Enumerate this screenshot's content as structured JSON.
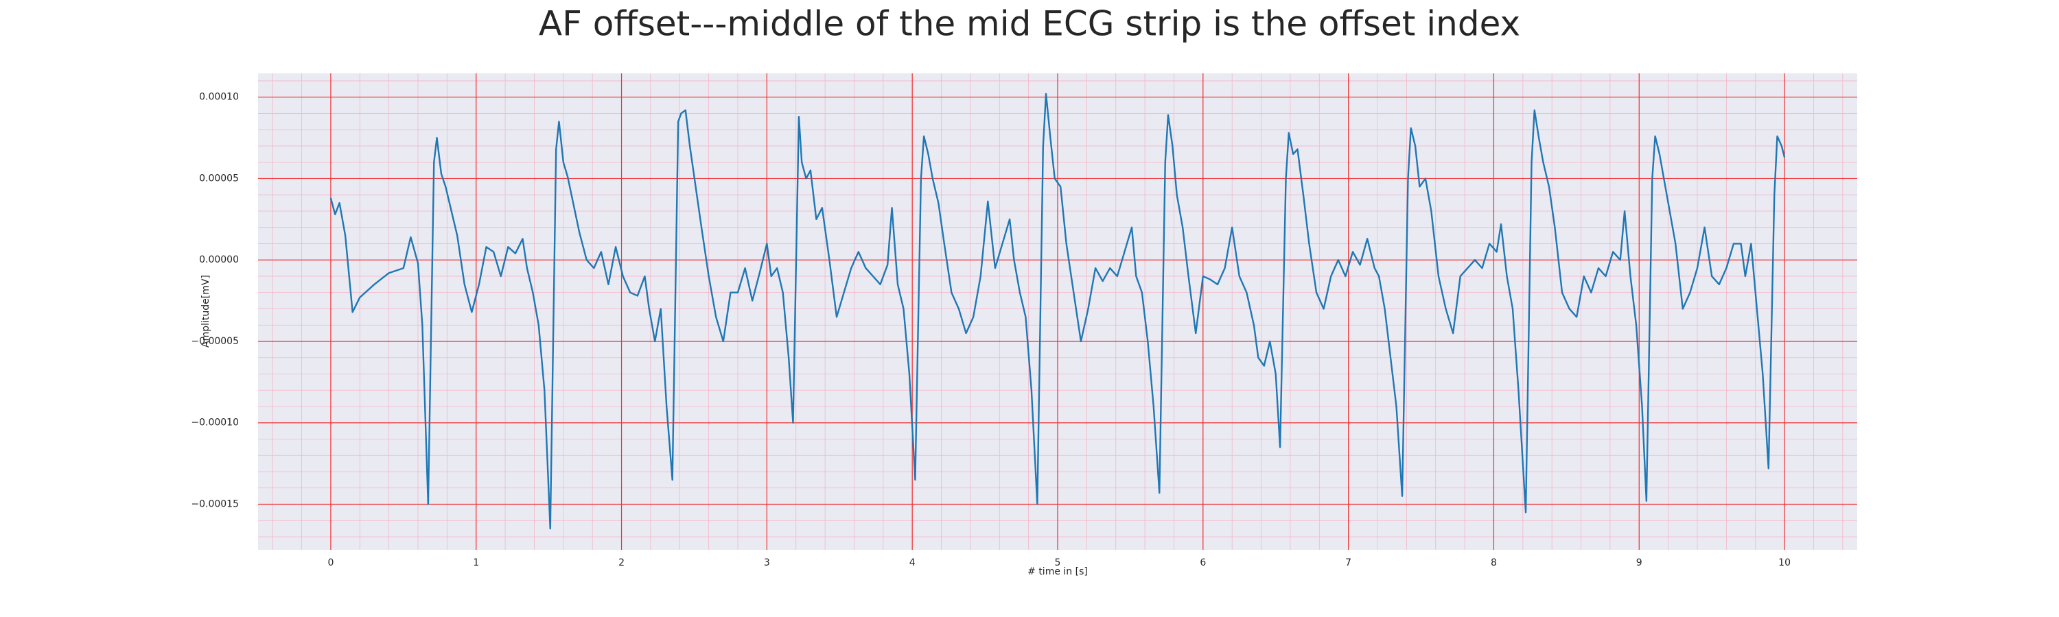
{
  "chart_data": {
    "type": "line",
    "title": "AF offset---middle of the mid ECG strip is the offset index",
    "xlabel": "# time in [s]",
    "ylabel": "Amplitude[mV]",
    "color": "#1f77b4",
    "grid": true,
    "minor_grid": true,
    "xlim": [
      -0.5,
      10.5
    ],
    "ylim": [
      -0.000178,
      0.0001146
    ],
    "xticks": [
      0,
      1,
      2,
      3,
      4,
      5,
      6,
      7,
      8,
      9,
      10
    ],
    "yticks": [
      {
        "value": -0.00015,
        "label": "−0.00015"
      },
      {
        "value": -0.0001,
        "label": "−0.00010"
      },
      {
        "value": -5e-05,
        "label": "−0.00005"
      },
      {
        "value": 0,
        "label": "0.00000"
      },
      {
        "value": 5e-05,
        "label": "0.00005"
      },
      {
        "value": 0.0001,
        "label": "0.00010"
      }
    ],
    "x": [
      0.0,
      0.03,
      0.06,
      0.1,
      0.15,
      0.2,
      0.3,
      0.4,
      0.5,
      0.55,
      0.6,
      0.63,
      0.67,
      0.71,
      0.73,
      0.76,
      0.79,
      0.83,
      0.87,
      0.92,
      0.97,
      1.02,
      1.07,
      1.12,
      1.17,
      1.22,
      1.27,
      1.32,
      1.35,
      1.39,
      1.43,
      1.47,
      1.51,
      1.55,
      1.57,
      1.6,
      1.63,
      1.67,
      1.71,
      1.76,
      1.81,
      1.86,
      1.91,
      1.96,
      2.01,
      2.06,
      2.11,
      2.16,
      2.19,
      2.23,
      2.27,
      2.31,
      2.35,
      2.39,
      2.41,
      2.44,
      2.47,
      2.51,
      2.55,
      2.6,
      2.65,
      2.7,
      2.75,
      2.8,
      2.85,
      2.9,
      2.95,
      3.0,
      3.03,
      3.07,
      3.11,
      3.15,
      3.18,
      3.22,
      3.24,
      3.27,
      3.3,
      3.34,
      3.38,
      3.43,
      3.48,
      3.53,
      3.58,
      3.63,
      3.68,
      3.73,
      3.78,
      3.83,
      3.86,
      3.9,
      3.94,
      3.98,
      4.02,
      4.06,
      4.08,
      4.11,
      4.14,
      4.18,
      4.22,
      4.27,
      4.32,
      4.37,
      4.42,
      4.47,
      4.52,
      4.57,
      4.62,
      4.67,
      4.7,
      4.74,
      4.78,
      4.82,
      4.86,
      4.9,
      4.92,
      4.95,
      4.98,
      5.02,
      5.06,
      5.11,
      5.16,
      5.21,
      5.26,
      5.31,
      5.36,
      5.41,
      5.46,
      5.51,
      5.54,
      5.58,
      5.62,
      5.66,
      5.7,
      5.74,
      5.76,
      5.79,
      5.82,
      5.86,
      5.9,
      5.95,
      6.0,
      6.05,
      6.1,
      6.15,
      6.2,
      6.25,
      6.3,
      6.35,
      6.38,
      6.42,
      6.46,
      6.5,
      6.53,
      6.57,
      6.59,
      6.62,
      6.65,
      6.69,
      6.73,
      6.78,
      6.83,
      6.88,
      6.93,
      6.98,
      7.03,
      7.08,
      7.13,
      7.18,
      7.21,
      7.25,
      7.29,
      7.33,
      7.37,
      7.41,
      7.43,
      7.46,
      7.49,
      7.53,
      7.57,
      7.62,
      7.67,
      7.72,
      7.77,
      7.82,
      7.87,
      7.92,
      7.97,
      8.02,
      8.05,
      8.09,
      8.13,
      8.17,
      8.22,
      8.26,
      8.28,
      8.31,
      8.34,
      8.38,
      8.42,
      8.47,
      8.52,
      8.57,
      8.62,
      8.67,
      8.72,
      8.77,
      8.82,
      8.87,
      8.9,
      8.94,
      8.98,
      9.02,
      9.05,
      9.09,
      9.11,
      9.14,
      9.17,
      9.21,
      9.25,
      9.3,
      9.35,
      9.4,
      9.45,
      9.5,
      9.55,
      9.6,
      9.65,
      9.7,
      9.73,
      9.77,
      9.81,
      9.85,
      9.89,
      9.93,
      9.95,
      9.98,
      10.0
    ],
    "values": [
      3.8e-05,
      2.8e-05,
      3.5e-05,
      1.5e-05,
      -3.2e-05,
      -2.3e-05,
      -1.5e-05,
      -8e-06,
      -5e-06,
      1.4e-05,
      -2e-06,
      -4e-05,
      -0.00015,
      6e-05,
      7.5e-05,
      5.3e-05,
      4.5e-05,
      3e-05,
      1.5e-05,
      -1.5e-05,
      -3.2e-05,
      -1.5e-05,
      8e-06,
      5e-06,
      -1e-05,
      8e-06,
      4e-06,
      1.3e-05,
      -5e-06,
      -2e-05,
      -4e-05,
      -8e-05,
      -0.000165,
      6.8e-05,
      8.5e-05,
      6e-05,
      5.1e-05,
      3.4e-05,
      1.7e-05,
      0,
      -5e-06,
      5e-06,
      -1.5e-05,
      8e-06,
      -1e-05,
      -2e-05,
      -2.2e-05,
      -1e-05,
      -3e-05,
      -5e-05,
      -3e-05,
      -9e-05,
      -0.000135,
      8.5e-05,
      9e-05,
      9.2e-05,
      7e-05,
      4.5e-05,
      2e-05,
      -1e-05,
      -3.5e-05,
      -5e-05,
      -2e-05,
      -2e-05,
      -5e-06,
      -2.5e-05,
      -8e-06,
      1e-05,
      -1e-05,
      -5e-06,
      -2e-05,
      -6e-05,
      -0.0001,
      8.8e-05,
      6e-05,
      5e-05,
      5.5e-05,
      2.5e-05,
      3.2e-05,
      0,
      -3.5e-05,
      -2e-05,
      -5e-06,
      5e-06,
      -5e-06,
      -1e-05,
      -1.5e-05,
      -3e-06,
      3.2e-05,
      -1.5e-05,
      -3e-05,
      -7e-05,
      -0.000135,
      5e-05,
      7.6e-05,
      6.5e-05,
      5e-05,
      3.5e-05,
      1e-05,
      -2e-05,
      -3e-05,
      -4.5e-05,
      -3.5e-05,
      -1e-05,
      3.6e-05,
      -5e-06,
      1e-05,
      2.5e-05,
      0,
      -2e-05,
      -3.5e-05,
      -8e-05,
      -0.00015,
      7e-05,
      0.000102,
      7.5e-05,
      5e-05,
      4.5e-05,
      1e-05,
      -2e-05,
      -5e-05,
      -3e-05,
      -5e-06,
      -1.3e-05,
      -5e-06,
      -1e-05,
      5e-06,
      2e-05,
      -1e-05,
      -2e-05,
      -5e-05,
      -9e-05,
      -0.000143,
      6e-05,
      8.9e-05,
      7e-05,
      4e-05,
      2e-05,
      -1e-05,
      -4.5e-05,
      -1e-05,
      -1.2e-05,
      -1.5e-05,
      -5e-06,
      2e-05,
      -1e-05,
      -2e-05,
      -4e-05,
      -6e-05,
      -6.5e-05,
      -5e-05,
      -7e-05,
      -0.000115,
      5e-05,
      7.8e-05,
      6.5e-05,
      6.8e-05,
      4e-05,
      1e-05,
      -2e-05,
      -3e-05,
      -1e-05,
      0,
      -1e-05,
      5e-06,
      -3e-06,
      1.3e-05,
      -5e-06,
      -1e-05,
      -3e-05,
      -6e-05,
      -9e-05,
      -0.000145,
      5e-05,
      8.1e-05,
      7e-05,
      4.5e-05,
      5e-05,
      3e-05,
      -1e-05,
      -3e-05,
      -4.5e-05,
      -1e-05,
      -5e-06,
      0,
      -5e-06,
      1e-05,
      5e-06,
      2.2e-05,
      -1e-05,
      -3e-05,
      -8e-05,
      -0.000155,
      6e-05,
      9.2e-05,
      7.5e-05,
      6e-05,
      4.5e-05,
      2e-05,
      -2e-05,
      -3e-05,
      -3.5e-05,
      -1e-05,
      -2e-05,
      -5e-06,
      -1e-05,
      5e-06,
      0,
      3e-05,
      -1e-05,
      -4e-05,
      -9e-05,
      -0.000148,
      5e-05,
      7.6e-05,
      6.5e-05,
      5e-05,
      3e-05,
      1e-05,
      -3e-05,
      -2e-05,
      -5e-06,
      2e-05,
      -1e-05,
      -1.5e-05,
      -5e-06,
      1e-05,
      1e-05,
      -1e-05,
      1e-05,
      -3e-05,
      -7e-05,
      -0.000128,
      4e-05,
      7.6e-05,
      7e-05,
      6.3e-05
    ]
  }
}
